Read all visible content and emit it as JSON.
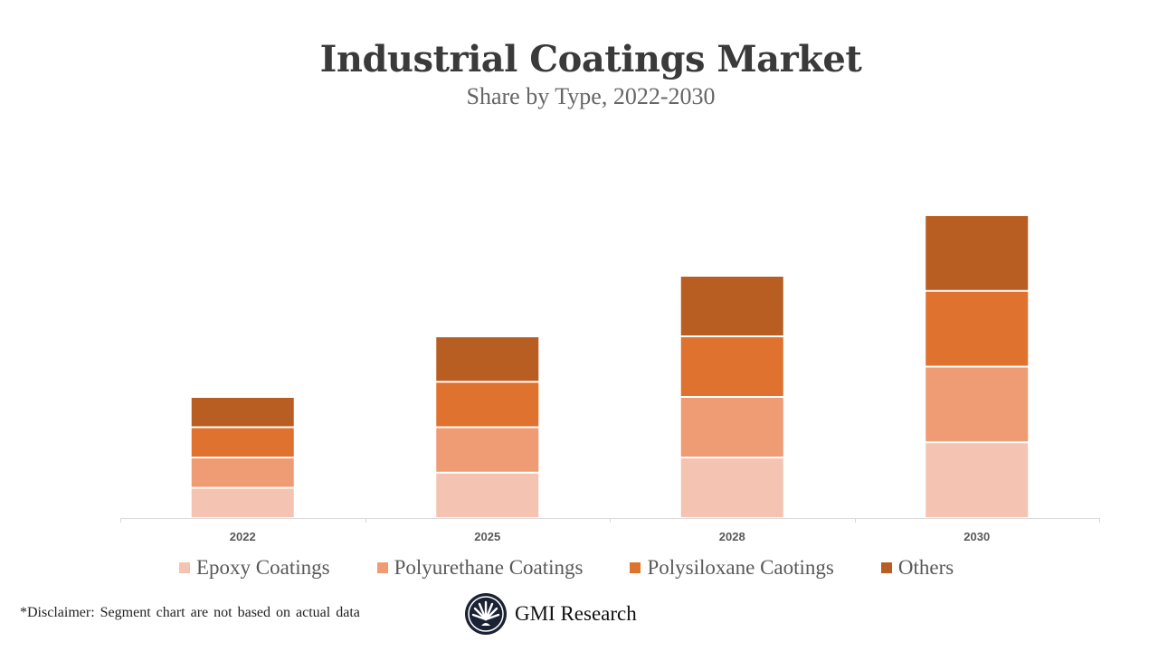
{
  "chart_data": {
    "type": "bar",
    "stacked": true,
    "title": "Industrial Coatings Market",
    "subtitle": "Share by Type, 2022-2030",
    "xlabel": "",
    "ylabel": "",
    "categories": [
      "2022",
      "2025",
      "2028",
      "2030"
    ],
    "series": [
      {
        "name": "Epoxy Coatings",
        "color": "#F5C3B2",
        "values": [
          2,
          3,
          4,
          5
        ]
      },
      {
        "name": "Polyurethane Coatings",
        "color": "#EF9B74",
        "values": [
          2,
          3,
          4,
          5
        ]
      },
      {
        "name": "Polysiloxane Caotings",
        "color": "#DE722E",
        "values": [
          2,
          3,
          4,
          5
        ]
      },
      {
        "name": "Others",
        "color": "#B95E22",
        "values": [
          2,
          3,
          4,
          5
        ]
      }
    ],
    "ylim": [
      0,
      20
    ],
    "y_axis_visible": false,
    "grid": false,
    "legend_position": "bottom"
  },
  "footer": {
    "disclaimer": "*Disclaimer:  Segment chart are not based on actual data",
    "brand": "GMI Research"
  }
}
